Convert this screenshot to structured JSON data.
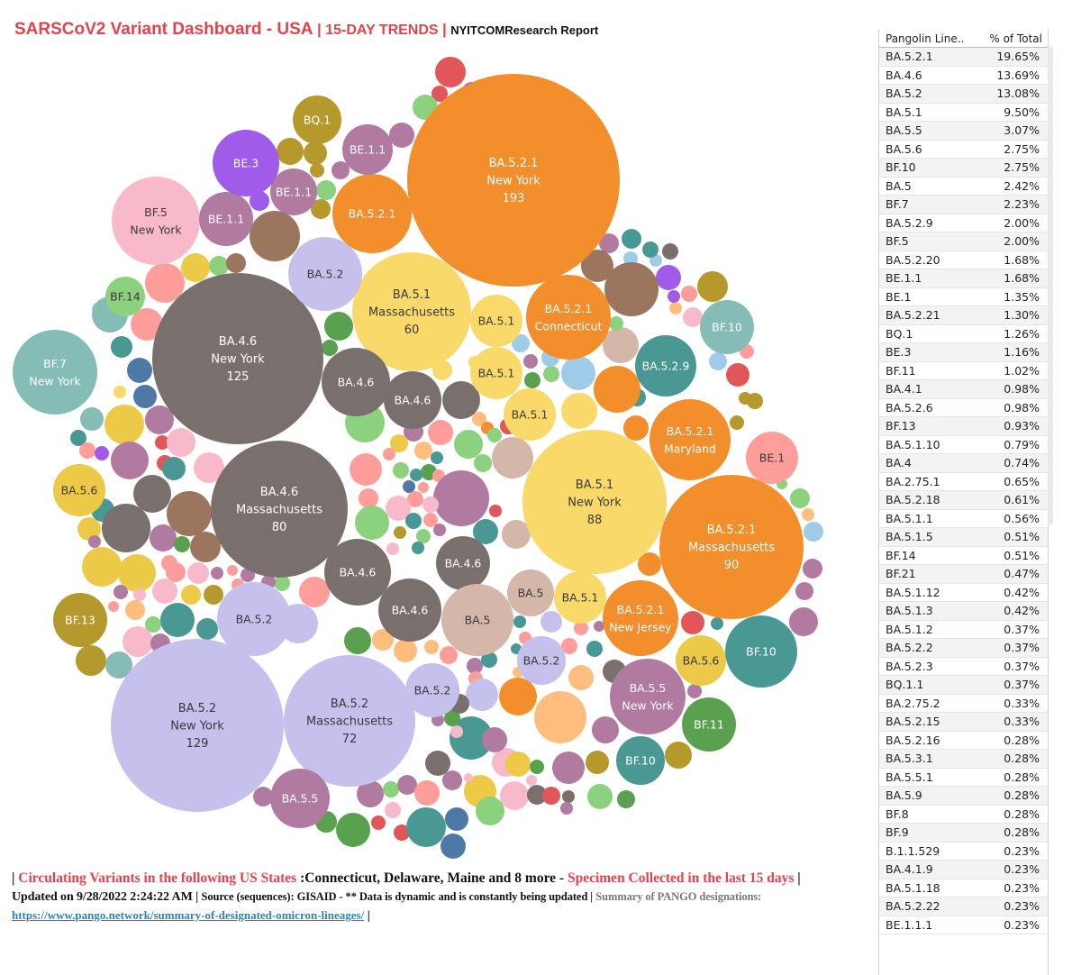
{
  "header": {
    "title": "SARSCoV2 Variant Dashboard - USA",
    "sep": "|",
    "subtitle": "15-DAY TRENDS",
    "sep2": "|",
    "report": "NYITCOMResearch Report"
  },
  "colors": {
    "orange": "#f28e2b",
    "gray": "#79706e",
    "lavender": "#c5c0ec",
    "yellow": "#f9d96a",
    "teal": "#499894",
    "sage": "#86bcb6",
    "pink": "#f8b9cb",
    "mauve": "#b07aa1",
    "olive": "#b6992d",
    "purple": "#a05ce8",
    "brown": "#9c755f",
    "tan": "#d4b7a9",
    "red": "#e15759",
    "salmon": "#ff9d9a",
    "green": "#59a14f",
    "lightgreen": "#8cd17d",
    "blue": "#4e79a7",
    "lightblue": "#a0cbe8",
    "peach": "#ffbe7d",
    "gold": "#edc948"
  },
  "chart_data": {
    "type": "bubble",
    "title": "SARSCoV2 Variant Dashboard - USA",
    "labeled_bubbles": [
      {
        "lineage": "BA.5.2.1",
        "state": "New York",
        "count": 193
      },
      {
        "lineage": "BA.5.2",
        "state": "New York",
        "count": 129
      },
      {
        "lineage": "BA.4.6",
        "state": "New York",
        "count": 125
      },
      {
        "lineage": "BA.5.2.1",
        "state": "Massachusetts",
        "count": 90
      },
      {
        "lineage": "BA.5.1",
        "state": "New York",
        "count": 88
      },
      {
        "lineage": "BA.4.6",
        "state": "Massachusetts",
        "count": 80
      },
      {
        "lineage": "BA.5.2",
        "state": "Massachusetts",
        "count": 72
      },
      {
        "lineage": "BA.5.1",
        "state": "Massachusetts",
        "count": 60
      },
      {
        "lineage": "BA.5.2.1",
        "state": "Connecticut"
      },
      {
        "lineage": "BA.5.2.1",
        "state": "Maryland"
      },
      {
        "lineage": "BA.5.2.1",
        "state": "New Jersey"
      },
      {
        "lineage": "BA.5.5",
        "state": "New York"
      },
      {
        "lineage": "BF.7",
        "state": "New York"
      },
      {
        "lineage": "BF.5",
        "state": "New York"
      },
      {
        "lineage": "BA.5.2.1"
      },
      {
        "lineage": "BA.5.2"
      },
      {
        "lineage": "BA.4.6"
      },
      {
        "lineage": "BA.5.1"
      },
      {
        "lineage": "BA.5"
      },
      {
        "lineage": "BA.5.6"
      },
      {
        "lineage": "BA.5.5"
      },
      {
        "lineage": "BA.5.2.9"
      },
      {
        "lineage": "BE.1"
      },
      {
        "lineage": "BE.1.1"
      },
      {
        "lineage": "BE.3"
      },
      {
        "lineage": "BQ.1"
      },
      {
        "lineage": "BF.10"
      },
      {
        "lineage": "BF.11"
      },
      {
        "lineage": "BF.13"
      },
      {
        "lineage": "BF.14"
      }
    ],
    "table": {
      "columns": [
        "Pangolin Line..",
        "% of Total"
      ],
      "rows": [
        [
          "BA.5.2.1",
          "19.65%"
        ],
        [
          "BA.4.6",
          "13.69%"
        ],
        [
          "BA.5.2",
          "13.08%"
        ],
        [
          "BA.5.1",
          "9.50%"
        ],
        [
          "BA.5.5",
          "3.07%"
        ],
        [
          "BA.5.6",
          "2.75%"
        ],
        [
          "BF.10",
          "2.75%"
        ],
        [
          "BA.5",
          "2.42%"
        ],
        [
          "BF.7",
          "2.23%"
        ],
        [
          "BA.5.2.9",
          "2.00%"
        ],
        [
          "BF.5",
          "2.00%"
        ],
        [
          "BA.5.2.20",
          "1.68%"
        ],
        [
          "BE.1.1",
          "1.68%"
        ],
        [
          "BE.1",
          "1.35%"
        ],
        [
          "BA.5.2.21",
          "1.30%"
        ],
        [
          "BQ.1",
          "1.26%"
        ],
        [
          "BE.3",
          "1.16%"
        ],
        [
          "BF.11",
          "1.02%"
        ],
        [
          "BA.4.1",
          "0.98%"
        ],
        [
          "BA.5.2.6",
          "0.98%"
        ],
        [
          "BF.13",
          "0.93%"
        ],
        [
          "BA.5.1.10",
          "0.79%"
        ],
        [
          "BA.4",
          "0.74%"
        ],
        [
          "BA.2.75.1",
          "0.65%"
        ],
        [
          "BA.5.2.18",
          "0.61%"
        ],
        [
          "BA.5.1.1",
          "0.56%"
        ],
        [
          "BA.5.1.5",
          "0.51%"
        ],
        [
          "BF.14",
          "0.51%"
        ],
        [
          "BF.21",
          "0.47%"
        ],
        [
          "BA.5.1.12",
          "0.42%"
        ],
        [
          "BA.5.1.3",
          "0.42%"
        ],
        [
          "BA.5.1.2",
          "0.37%"
        ],
        [
          "BA.5.2.2",
          "0.37%"
        ],
        [
          "BA.5.2.3",
          "0.37%"
        ],
        [
          "BQ.1.1",
          "0.37%"
        ],
        [
          "BA.2.75.2",
          "0.33%"
        ],
        [
          "BA.5.2.15",
          "0.33%"
        ],
        [
          "BA.5.2.16",
          "0.28%"
        ],
        [
          "BA.5.3.1",
          "0.28%"
        ],
        [
          "BA.5.5.1",
          "0.28%"
        ],
        [
          "BA.5.9",
          "0.28%"
        ],
        [
          "BF.8",
          "0.28%"
        ],
        [
          "BF.9",
          "0.28%"
        ],
        [
          "B.1.1.529",
          "0.23%"
        ],
        [
          "BA.4.1.9",
          "0.23%"
        ],
        [
          "BA.5.1.18",
          "0.23%"
        ],
        [
          "BA.5.2.22",
          "0.23%"
        ],
        [
          "BE.1.1.1",
          "0.23%"
        ]
      ]
    }
  },
  "footer": {
    "pipe_open": "|",
    "circulating_label": "Circulating Variants in the following US States",
    "states": ":Connecticut, Delaware, Maine and 8 more -",
    "collected_label": "Specimen Collected in the last 15 days",
    "pipe_close": "|",
    "updated": "Updated on 9/28/2022 2:24:22 AM |",
    "source": "Source (sequences): GISAID - ** Data is dynamic and is constantly being updated |",
    "summary_label": "Summary of PANGO designations:",
    "link": "https://www.pango.network/summary-of-designated-omicron-lineages/",
    "link_pipe": "|"
  }
}
